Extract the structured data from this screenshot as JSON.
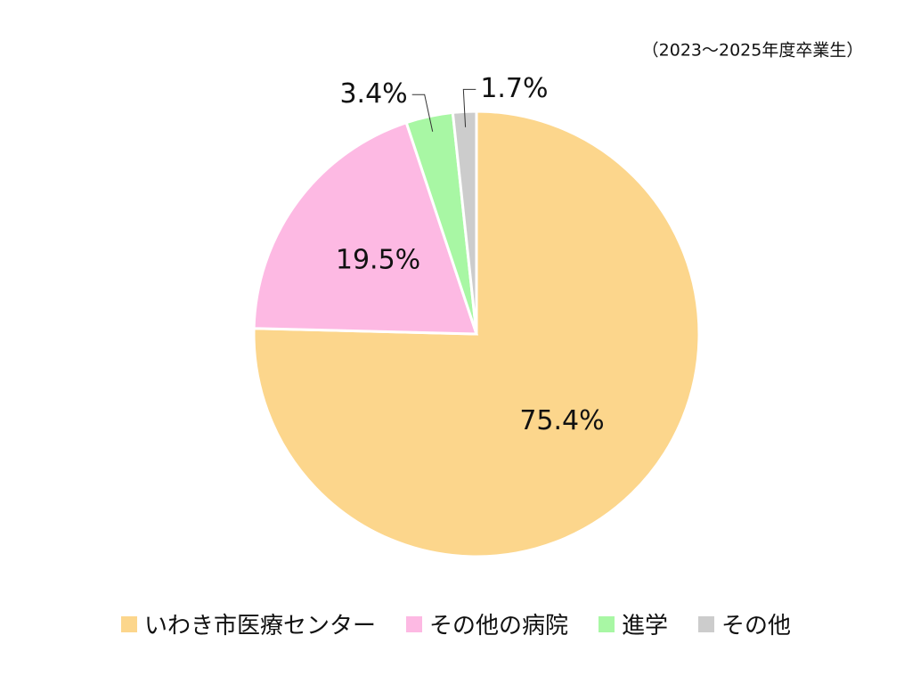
{
  "chart_data": {
    "type": "pie",
    "subtitle": "（2023～2025年度卒業生）",
    "categories": [
      "いわき市医療センター",
      "その他の病院",
      "進学",
      "その他"
    ],
    "values": [
      75.4,
      19.5,
      3.4,
      1.7
    ],
    "value_labels": [
      "75.4%",
      "19.5%",
      "3.4%",
      "1.7%"
    ],
    "colors": [
      "#fcd68c",
      "#fdb9e3",
      "#a8f7a4",
      "#cccccc"
    ]
  }
}
